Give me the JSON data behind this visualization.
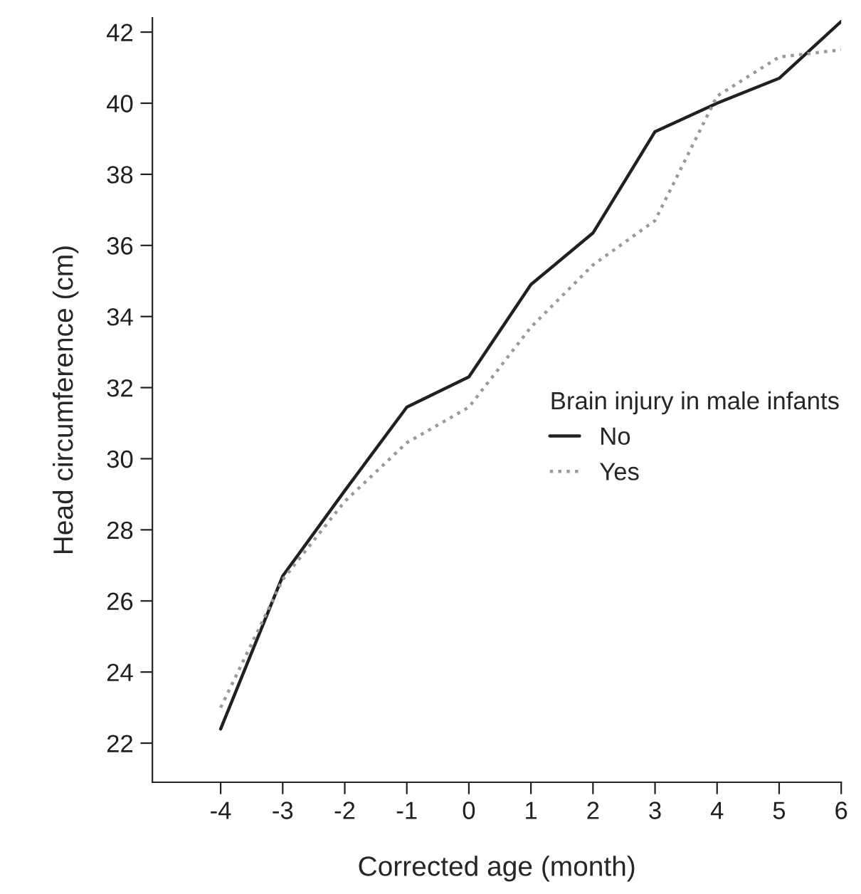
{
  "chart_data": {
    "type": "line",
    "xlabel": "Corrected age (month)",
    "ylabel": "Head circumference (cm)",
    "legend_title": "Brain injury in male infants",
    "x": [
      -4,
      -3,
      -2,
      -1,
      0,
      1,
      2,
      3,
      4,
      5,
      6
    ],
    "series": [
      {
        "name": "No",
        "color": "#231f20",
        "line_style": "solid",
        "values": [
          22.4,
          26.7,
          29.1,
          31.45,
          32.3,
          34.9,
          36.35,
          39.2,
          40.0,
          40.7,
          42.3
        ]
      },
      {
        "name": "Yes",
        "color": "#999999",
        "line_style": "dotted",
        "values": [
          23.0,
          26.6,
          28.8,
          30.45,
          31.45,
          33.7,
          35.45,
          36.7,
          40.2,
          41.3,
          41.5
        ]
      }
    ],
    "xlim": [
      -5.1,
      6
    ],
    "ylim": [
      20.9,
      42.4
    ],
    "xticks": [
      -4,
      -3,
      -2,
      -1,
      0,
      1,
      2,
      3,
      4,
      5,
      6
    ],
    "yticks": [
      22,
      24,
      26,
      28,
      30,
      32,
      34,
      36,
      38,
      40,
      42
    ],
    "grid": false,
    "legend": "center right",
    "marker": "none"
  }
}
